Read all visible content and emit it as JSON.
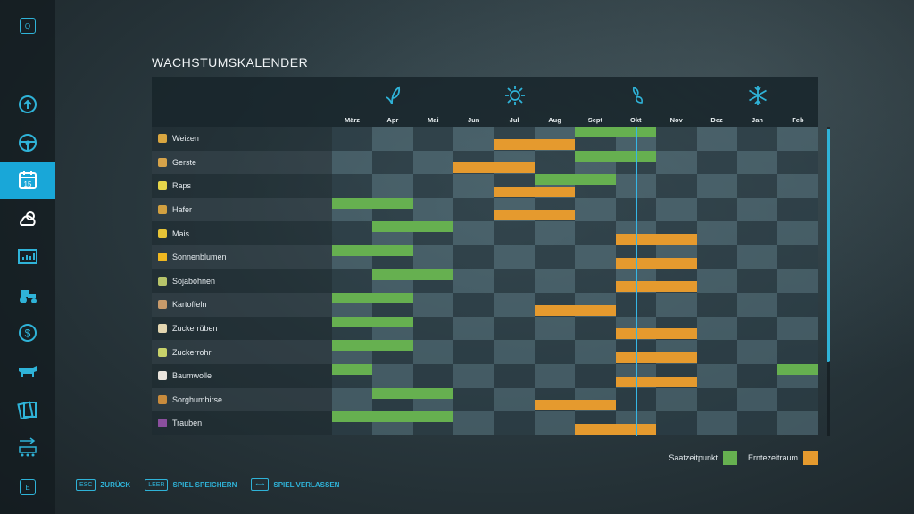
{
  "title": "WACHSTUMSKALENDER",
  "sidebar": {
    "top_key": "Q",
    "bottom_key": "E",
    "items": [
      {
        "name": "price-history-icon"
      },
      {
        "name": "steering-wheel-icon"
      },
      {
        "name": "calendar-icon",
        "label": "15",
        "active": true
      },
      {
        "name": "weather-icon"
      },
      {
        "name": "statistics-icon"
      },
      {
        "name": "tractor-icon"
      },
      {
        "name": "finance-icon"
      },
      {
        "name": "cow-icon"
      },
      {
        "name": "contracts-icon"
      },
      {
        "name": "production-icon"
      }
    ]
  },
  "seasons": [
    "spring-icon",
    "summer-icon",
    "autumn-icon",
    "winter-icon"
  ],
  "months": [
    "März",
    "Apr",
    "Mai",
    "Jun",
    "Jul",
    "Aug",
    "Sept",
    "Okt",
    "Nov",
    "Dez",
    "Jan",
    "Feb"
  ],
  "current_month_fraction": 7.5,
  "colors": {
    "sowing": "#66b050",
    "harvest": "#e59a2e",
    "accent": "#19a7d8"
  },
  "crops": [
    {
      "name": "Weizen",
      "icon_color": "#d9a640",
      "sow": [
        [
          6,
          8
        ]
      ],
      "harvest": [
        [
          4,
          6
        ]
      ]
    },
    {
      "name": "Gerste",
      "icon_color": "#d6a34a",
      "sow": [
        [
          6,
          8
        ]
      ],
      "harvest": [
        [
          3,
          5
        ]
      ]
    },
    {
      "name": "Raps",
      "icon_color": "#e5d54a",
      "sow": [
        [
          5,
          7
        ]
      ],
      "harvest": [
        [
          4,
          6
        ]
      ]
    },
    {
      "name": "Hafer",
      "icon_color": "#d2a040",
      "sow": [
        [
          0,
          2
        ]
      ],
      "harvest": [
        [
          4,
          6
        ]
      ]
    },
    {
      "name": "Mais",
      "icon_color": "#e7c437",
      "sow": [
        [
          1,
          3
        ]
      ],
      "harvest": [
        [
          7,
          9
        ]
      ]
    },
    {
      "name": "Sonnenblumen",
      "icon_color": "#f0b820",
      "sow": [
        [
          0,
          2
        ]
      ],
      "harvest": [
        [
          7,
          9
        ]
      ]
    },
    {
      "name": "Sojabohnen",
      "icon_color": "#b7c46a",
      "sow": [
        [
          1,
          3
        ]
      ],
      "harvest": [
        [
          7,
          9
        ]
      ]
    },
    {
      "name": "Kartoffeln",
      "icon_color": "#c79a6a",
      "sow": [
        [
          0,
          2
        ]
      ],
      "harvest": [
        [
          5,
          7
        ]
      ]
    },
    {
      "name": "Zuckerrüben",
      "icon_color": "#e3d6b0",
      "sow": [
        [
          0,
          2
        ]
      ],
      "harvest": [
        [
          7,
          9
        ]
      ]
    },
    {
      "name": "Zuckerrohr",
      "icon_color": "#c8d26a",
      "sow": [
        [
          0,
          2
        ]
      ],
      "harvest": [
        [
          7,
          9
        ]
      ]
    },
    {
      "name": "Baumwolle",
      "icon_color": "#e9e4dc",
      "sow": [
        [
          0,
          1
        ],
        [
          11,
          12
        ]
      ],
      "harvest": [
        [
          7,
          9
        ]
      ]
    },
    {
      "name": "Sorghumhirse",
      "icon_color": "#c88b3c",
      "sow": [
        [
          1,
          3
        ]
      ],
      "harvest": [
        [
          5,
          7
        ]
      ]
    },
    {
      "name": "Trauben",
      "icon_color": "#8b4f9e",
      "sow": [
        [
          0,
          3
        ]
      ],
      "harvest": [
        [
          6,
          8
        ]
      ]
    }
  ],
  "legend": {
    "sowing": "Saatzeitpunkt",
    "harvest": "Erntezeitraum"
  },
  "footer": [
    {
      "key": "ESC",
      "label": "ZURÜCK",
      "name": "back-button"
    },
    {
      "key": "LEER",
      "label": "SPIEL SPEICHERN",
      "name": "save-game-button"
    },
    {
      "key": "⟷",
      "label": "SPIEL VERLASSEN",
      "name": "quit-game-button"
    }
  ]
}
